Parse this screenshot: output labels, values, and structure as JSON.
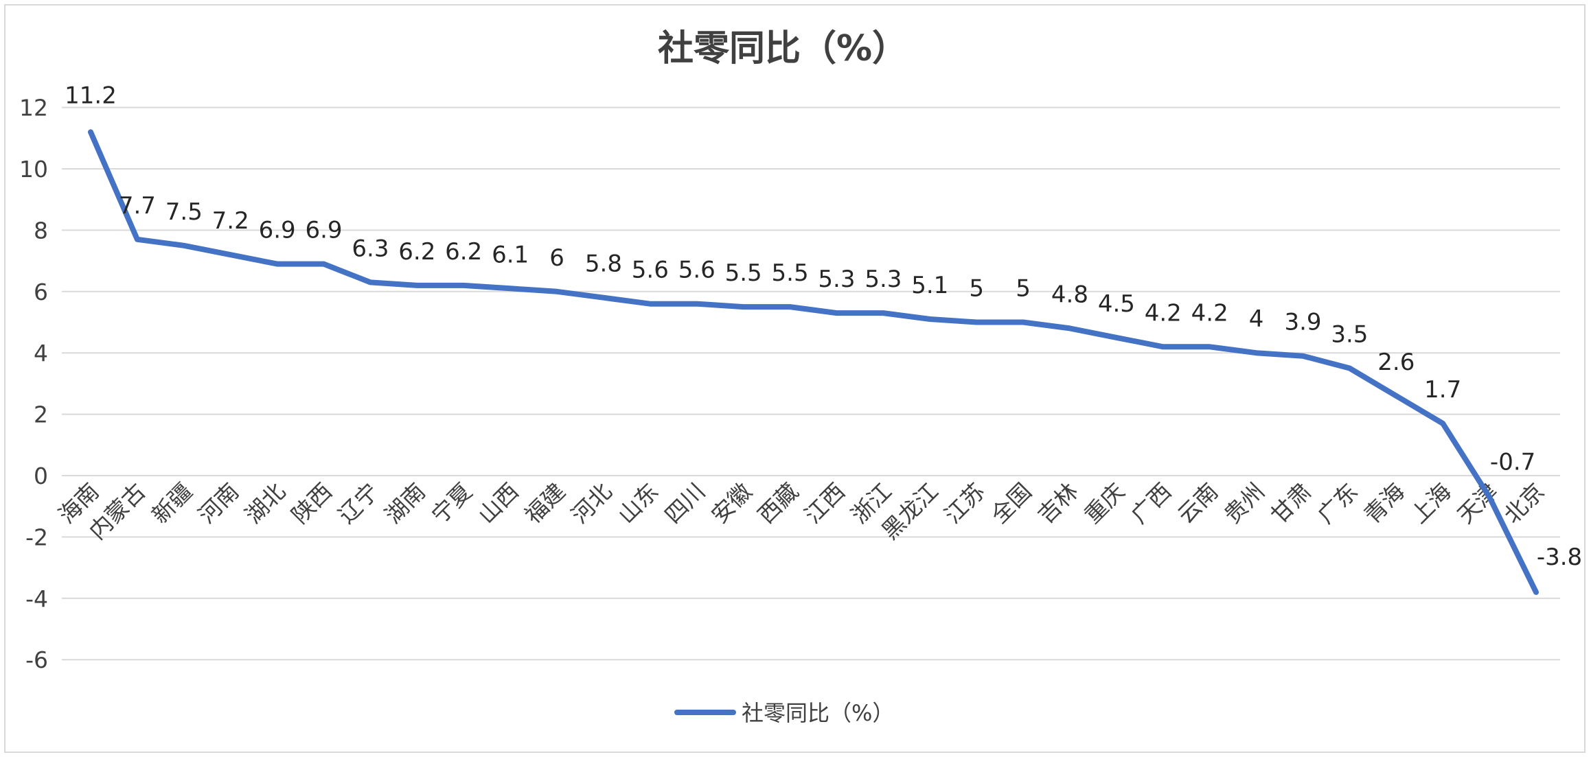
{
  "chart_data": {
    "type": "line",
    "title": "社零同比（%）",
    "categories": [
      "海南",
      "内蒙古",
      "新疆",
      "河南",
      "湖北",
      "陕西",
      "辽宁",
      "湖南",
      "宁夏",
      "山西",
      "福建",
      "河北",
      "山东",
      "四川",
      "安徽",
      "西藏",
      "江西",
      "浙江",
      "黑龙江",
      "江苏",
      "全国",
      "吉林",
      "重庆",
      "广西",
      "云南",
      "贵州",
      "甘肃",
      "广东",
      "青海",
      "上海",
      "天津",
      "北京"
    ],
    "series": [
      {
        "name": "社零同比（%）",
        "values": [
          11.2,
          7.7,
          7.5,
          7.2,
          6.9,
          6.9,
          6.3,
          6.2,
          6.2,
          6.1,
          6,
          5.8,
          5.6,
          5.6,
          5.5,
          5.5,
          5.3,
          5.3,
          5.1,
          5,
          5,
          4.8,
          4.5,
          4.2,
          4.2,
          4,
          3.9,
          3.5,
          2.6,
          1.7,
          -0.7,
          -3.8
        ],
        "color": "#4472c4"
      }
    ],
    "ylim": [
      -6,
      12
    ],
    "yticks": [
      -6,
      -4,
      -2,
      0,
      2,
      4,
      6,
      8,
      10,
      12
    ],
    "xlabel": "",
    "ylabel": "",
    "grid": true,
    "legend": "bottom",
    "data_labels": true
  }
}
